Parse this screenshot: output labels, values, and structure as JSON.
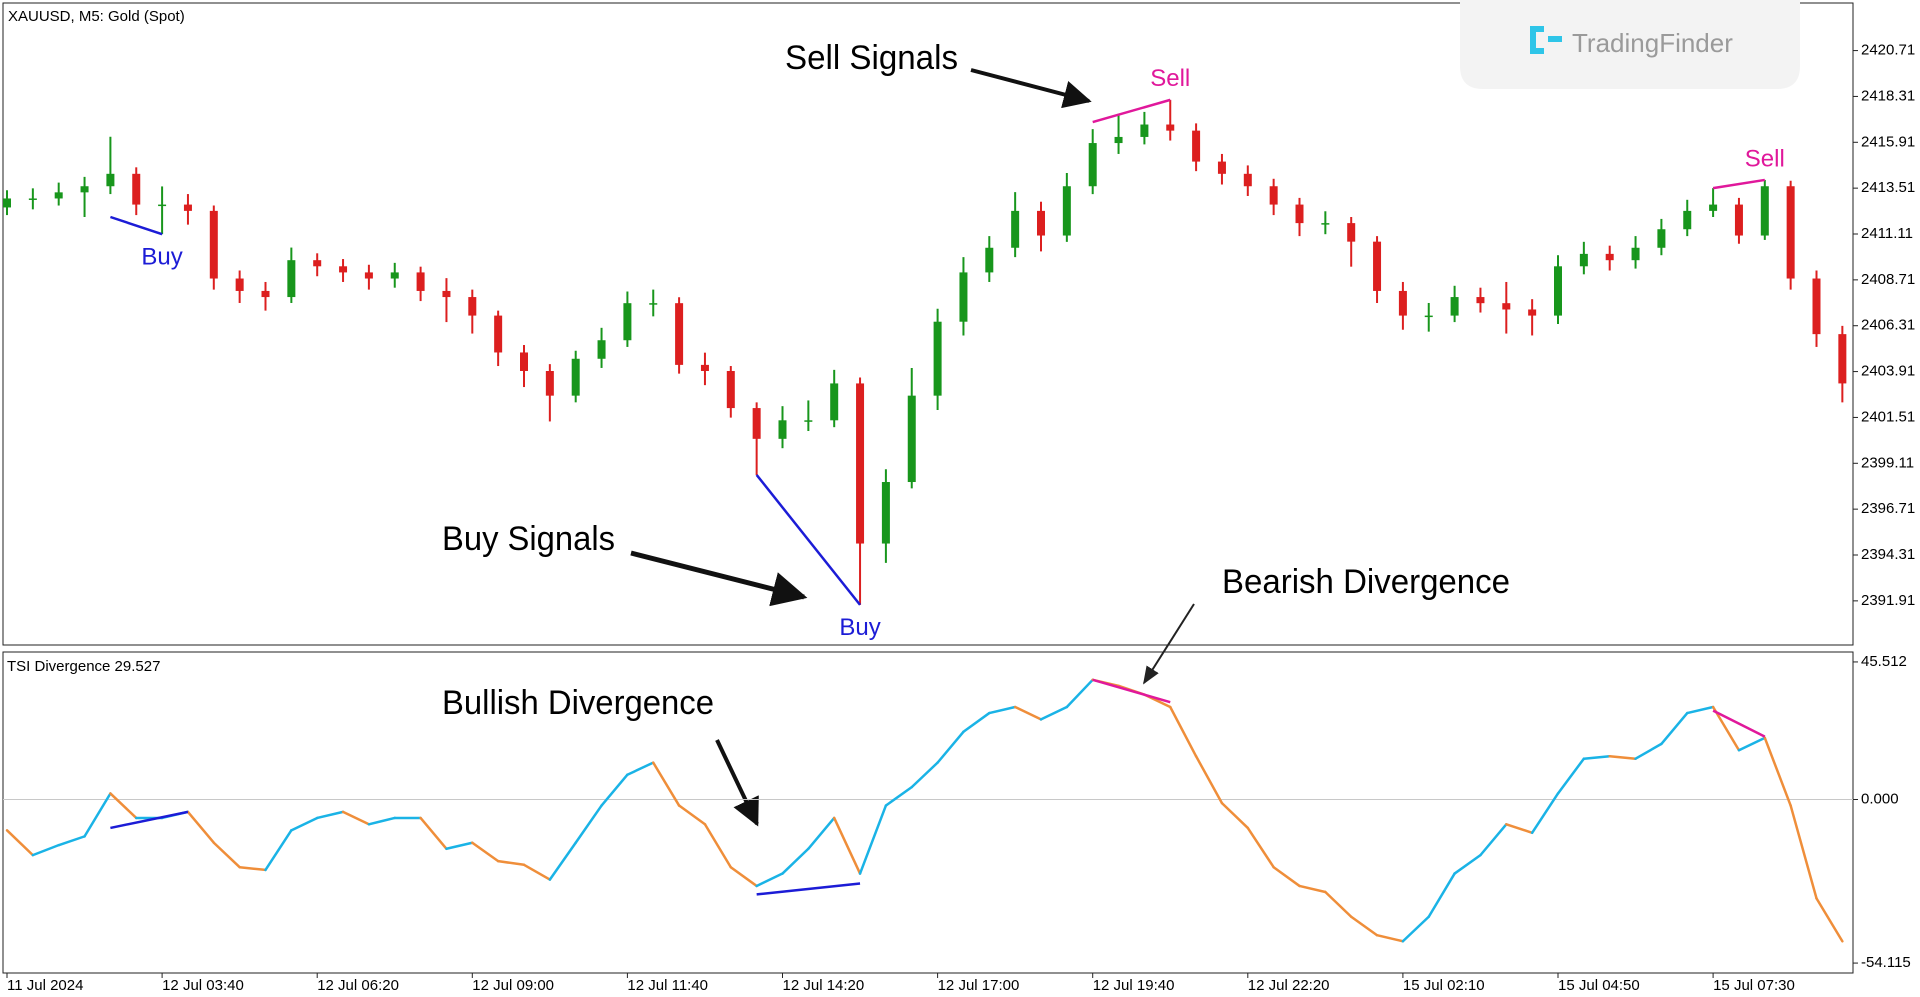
{
  "watermark": "TradingFinder",
  "chart_data": [
    {
      "type": "candlestick",
      "title": "XAUUSD, M5: Gold (Spot)",
      "annotations": [
        "Sell Signals",
        "Buy Signals"
      ],
      "up_color": "#18961c",
      "down_color": "#dc1f1f",
      "ylim": [
        2389.6,
        2423.2
      ],
      "yticks": [
        2420.71,
        2418.31,
        2415.91,
        2413.51,
        2411.11,
        2408.71,
        2406.31,
        2403.91,
        2401.51,
        2399.11,
        2396.71,
        2394.31,
        2391.91
      ],
      "open": [
        2412.5,
        2412.97,
        2412.97,
        2413.29,
        2413.61,
        2414.26,
        2412.65,
        2412.65,
        2412.32,
        2408.78,
        2408.13,
        2407.81,
        2409.74,
        2409.42,
        2409.1,
        2408.78,
        2409.1,
        2408.13,
        2407.81,
        2406.84,
        2404.91,
        2403.94,
        2402.65,
        2404.58,
        2405.55,
        2407.49,
        2407.49,
        2404.26,
        2403.94,
        2402.0,
        2400.39,
        2401.36,
        2401.36,
        2403.29,
        2394.91,
        2398.13,
        2402.65,
        2406.52,
        2409.1,
        2410.39,
        2412.32,
        2411.03,
        2413.61,
        2415.87,
        2416.19,
        2416.84,
        2416.52,
        2414.9,
        2414.26,
        2413.61,
        2412.65,
        2411.68,
        2411.68,
        2410.71,
        2408.13,
        2406.84,
        2406.84,
        2407.81,
        2407.49,
        2407.16,
        2406.84,
        2409.42,
        2410.07,
        2409.74,
        2410.39,
        2411.36,
        2412.32,
        2412.65,
        2411.03,
        2413.61,
        2408.78,
        2405.87
      ],
      "high": [
        2413.4,
        2413.5,
        2413.8,
        2414.1,
        2416.2,
        2414.6,
        2413.6,
        2413.2,
        2412.6,
        2409.2,
        2408.6,
        2410.4,
        2410.1,
        2409.8,
        2409.5,
        2409.6,
        2409.4,
        2408.8,
        2408.2,
        2407.1,
        2405.3,
        2404.3,
        2405.0,
        2406.2,
        2408.1,
        2408.2,
        2407.8,
        2404.9,
        2404.2,
        2402.3,
        2402.1,
        2402.4,
        2404.0,
        2403.6,
        2398.8,
        2404.1,
        2407.2,
        2409.9,
        2411.0,
        2413.3,
        2412.8,
        2414.3,
        2416.6,
        2417.4,
        2417.5,
        2418.13,
        2416.9,
        2415.3,
        2414.7,
        2414.0,
        2413.0,
        2412.3,
        2412.0,
        2411.0,
        2408.6,
        2407.5,
        2408.4,
        2408.3,
        2408.6,
        2407.7,
        2410.0,
        2410.7,
        2410.5,
        2411.0,
        2411.9,
        2412.9,
        2413.51,
        2413.0,
        2413.94,
        2413.9,
        2409.2,
        2406.3
      ],
      "low": [
        2412.1,
        2412.4,
        2412.6,
        2412.0,
        2413.2,
        2412.1,
        2411.1,
        2411.6,
        2408.2,
        2407.5,
        2407.1,
        2407.5,
        2408.9,
        2408.6,
        2408.2,
        2408.3,
        2407.6,
        2406.5,
        2405.9,
        2404.2,
        2403.1,
        2401.3,
        2402.3,
        2404.1,
        2405.2,
        2406.8,
        2403.8,
        2403.2,
        2401.5,
        2398.5,
        2399.9,
        2400.8,
        2401.0,
        2391.7,
        2393.9,
        2397.8,
        2401.9,
        2405.8,
        2408.6,
        2409.9,
        2410.2,
        2410.7,
        2413.2,
        2415.3,
        2415.8,
        2416.0,
        2414.4,
        2413.7,
        2413.1,
        2412.1,
        2411.0,
        2411.1,
        2409.4,
        2407.5,
        2406.1,
        2406.0,
        2406.5,
        2407.0,
        2405.9,
        2405.8,
        2406.4,
        2409.0,
        2409.2,
        2409.3,
        2410.0,
        2411.0,
        2412.0,
        2410.6,
        2410.8,
        2408.2,
        2405.2,
        2402.3
      ],
      "close": [
        2412.97,
        2412.97,
        2413.29,
        2413.61,
        2414.26,
        2412.65,
        2412.65,
        2412.32,
        2408.78,
        2408.13,
        2407.81,
        2409.74,
        2409.42,
        2409.1,
        2408.78,
        2409.1,
        2408.13,
        2407.81,
        2406.84,
        2404.91,
        2403.94,
        2402.65,
        2404.58,
        2405.55,
        2407.49,
        2407.49,
        2404.26,
        2403.94,
        2402.0,
        2400.39,
        2401.36,
        2401.36,
        2403.29,
        2394.91,
        2398.13,
        2402.65,
        2406.52,
        2409.1,
        2410.39,
        2412.32,
        2411.03,
        2413.61,
        2415.87,
        2416.19,
        2416.84,
        2416.52,
        2414.9,
        2414.26,
        2413.61,
        2412.65,
        2411.68,
        2411.68,
        2410.71,
        2408.13,
        2406.84,
        2406.84,
        2407.81,
        2407.49,
        2407.16,
        2406.84,
        2409.42,
        2410.07,
        2409.74,
        2410.39,
        2411.36,
        2412.32,
        2412.65,
        2411.03,
        2413.61,
        2408.78,
        2405.87,
        2403.29
      ],
      "signals": [
        {
          "label": "Buy",
          "color": "#1c1cd6",
          "x": [
            4,
            6
          ],
          "y": [
            2412.0,
            2411.1
          ]
        },
        {
          "label": "Buy",
          "color": "#1c1cd6",
          "x": [
            29,
            33
          ],
          "y": [
            2398.5,
            2391.7
          ]
        },
        {
          "label": "Sell",
          "color": "#e0189b",
          "x": [
            42,
            45
          ],
          "y": [
            2416.97,
            2418.13
          ]
        },
        {
          "label": "Sell",
          "color": "#e0189b",
          "x": [
            66,
            68
          ],
          "y": [
            2413.51,
            2413.94
          ]
        }
      ]
    },
    {
      "type": "line",
      "title": "TSI Divergence 29.527",
      "annotations": [
        "Bearish Divergence",
        "Bullish Divergence"
      ],
      "up_color": "#1ab3e6",
      "down_color": "#ef8e3a",
      "ylim": [
        -57.4,
        48.8
      ],
      "yticks": [
        45.512,
        {
          "value": 0,
          "label": "0.000"
        },
        -54.115
      ],
      "categories": [
        "11 Jul 2024",
        null,
        null,
        null,
        null,
        null,
        "12 Jul 03:40",
        null,
        null,
        null,
        null,
        null,
        "12 Jul 06:20",
        null,
        null,
        null,
        null,
        null,
        "12 Jul 09:00",
        null,
        null,
        null,
        null,
        null,
        "12 Jul 11:40",
        null,
        null,
        null,
        null,
        null,
        "12 Jul 14:20",
        null,
        null,
        null,
        null,
        null,
        "12 Jul 17:00",
        null,
        null,
        null,
        null,
        null,
        "12 Jul 19:40",
        null,
        null,
        null,
        null,
        null,
        "12 Jul 22:20",
        null,
        null,
        null,
        null,
        null,
        "15 Jul 02:10",
        null,
        null,
        null,
        null,
        null,
        "15 Jul 04:50",
        null,
        null,
        null,
        null,
        null,
        "15 Jul 07:30",
        null,
        null,
        null,
        null,
        null
      ],
      "values": [
        -10.2,
        -18.4,
        -15.1,
        -12.2,
        2.0,
        -6.1,
        -6.1,
        -4.1,
        -14.3,
        -22.4,
        -23.3,
        -10.2,
        -6.1,
        -4.1,
        -8.2,
        -6.1,
        -6.1,
        -16.3,
        -14.3,
        -20.4,
        -21.6,
        -26.5,
        -14.3,
        -2.0,
        8.2,
        12.2,
        -2.0,
        -8.2,
        -22.4,
        -28.6,
        -24.5,
        -16.3,
        -6.1,
        -24.5,
        -2.0,
        4.1,
        12.2,
        22.4,
        28.6,
        30.6,
        26.5,
        30.6,
        39.6,
        37.6,
        34.7,
        30.6,
        14.3,
        -1.2,
        -9.4,
        -22.4,
        -28.6,
        -30.6,
        -38.8,
        -44.9,
        -46.9,
        -38.8,
        -24.5,
        -18.4,
        -8.2,
        -11.0,
        2.0,
        13.5,
        14.3,
        13.5,
        18.4,
        28.6,
        30.6,
        16.3,
        20.4,
        -2.0,
        -32.7,
        -46.9
      ],
      "signals": [
        {
          "color": "#1c1cd6",
          "x": [
            4,
            7
          ],
          "y": [
            -9.4,
            -4.1
          ]
        },
        {
          "color": "#1c1cd6",
          "x": [
            29,
            33
          ],
          "y": [
            -31.4,
            -27.8
          ]
        },
        {
          "color": "#e0189b",
          "x": [
            42,
            45
          ],
          "y": [
            39.6,
            32.2
          ]
        },
        {
          "color": "#e0189b",
          "x": [
            66,
            68
          ],
          "y": [
            29.4,
            20.8
          ]
        }
      ]
    }
  ]
}
